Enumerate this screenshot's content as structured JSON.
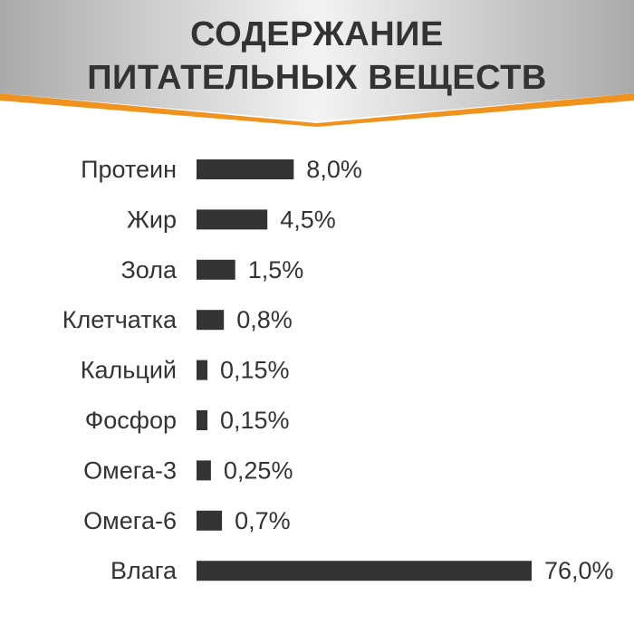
{
  "title": {
    "line1": "СОДЕРЖАНИЕ",
    "line2": "ПИТАТЕЛЬНЫХ ВЕЩЕСТВ"
  },
  "colors": {
    "banner_light": "#f2f2f2",
    "banner_dark": "#b9b9b9",
    "accent": "#f0921e",
    "bar": "#333333",
    "text": "#333333"
  },
  "chart_data": {
    "type": "bar",
    "orientation": "horizontal",
    "categories": [
      "Протеин",
      "Жир",
      "Зола",
      "Клетчатка",
      "Кальций",
      "Фосфор",
      "Омега-3",
      "Омега-6",
      "Влага"
    ],
    "values": [
      8.0,
      4.5,
      1.5,
      0.8,
      0.15,
      0.15,
      0.25,
      0.7,
      76.0
    ],
    "value_labels": [
      "8,0%",
      "4,5%",
      "1,5%",
      "0,8%",
      "0,15%",
      "0,15%",
      "0,25%",
      "0,7%",
      "76,0%"
    ],
    "unit": "%",
    "scale": "nonlinear",
    "grid": false,
    "legend": "none"
  }
}
